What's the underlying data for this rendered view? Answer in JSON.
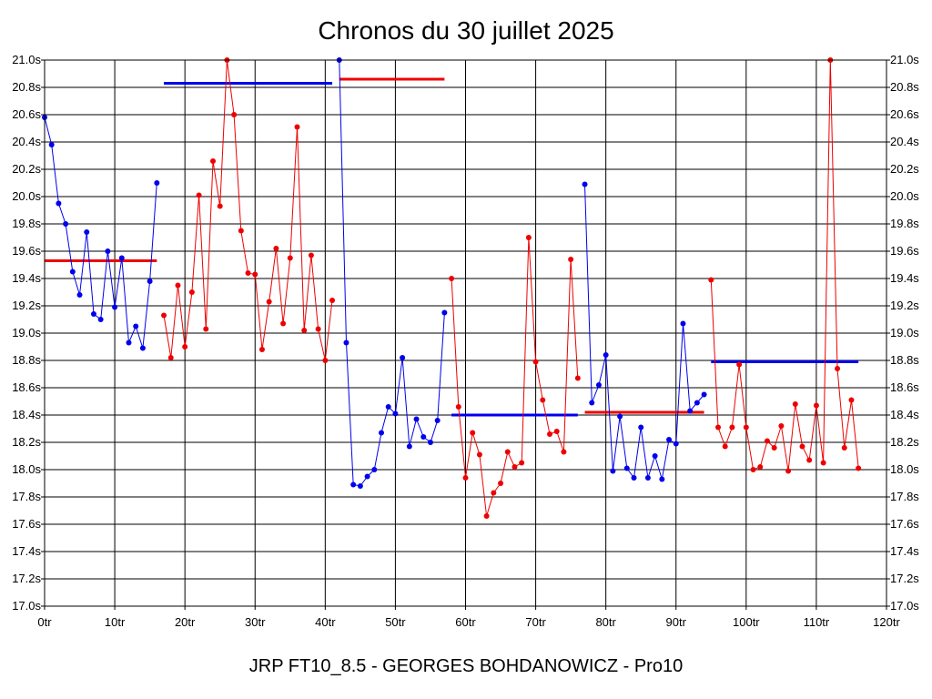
{
  "chart_data": {
    "type": "line",
    "title": "Chronos du 30 juillet 2025",
    "footer": "JRP FT10_8.5 - GEORGES BOHDANOWICZ - Pro10",
    "xlabel": "",
    "ylabel": "",
    "xlim": [
      0,
      120
    ],
    "ylim": [
      17.0,
      21.0
    ],
    "x_ticks": [
      0,
      10,
      20,
      30,
      40,
      50,
      60,
      70,
      80,
      90,
      100,
      110,
      120
    ],
    "x_tick_labels": [
      "0tr",
      "10tr",
      "20tr",
      "30tr",
      "40tr",
      "50tr",
      "60tr",
      "70tr",
      "80tr",
      "90tr",
      "100tr",
      "110tr",
      "120tr"
    ],
    "y_ticks": [
      17.0,
      17.2,
      17.4,
      17.6,
      17.8,
      18.0,
      18.2,
      18.4,
      18.6,
      18.8,
      19.0,
      19.2,
      19.4,
      19.6,
      19.8,
      20.0,
      20.2,
      20.4,
      20.6,
      20.8,
      21.0
    ],
    "y_tick_labels": [
      "17.0s",
      "17.2s",
      "17.4s",
      "17.6s",
      "17.8s",
      "18.0s",
      "18.2s",
      "18.4s",
      "18.6s",
      "18.8s",
      "19.0s",
      "19.2s",
      "19.4s",
      "19.6s",
      "19.8s",
      "20.0s",
      "20.2s",
      "20.4s",
      "20.6s",
      "20.8s",
      "21.0s"
    ],
    "grid": true,
    "colors": {
      "blue": "#0000ee",
      "red": "#ee0000",
      "grid": "#000000"
    },
    "stints": [
      {
        "color": "blue",
        "x": [
          0,
          1,
          2,
          3,
          4,
          5,
          6,
          7,
          8,
          9,
          10,
          11,
          12,
          13,
          14,
          15,
          16
        ],
        "values": [
          20.58,
          20.38,
          19.95,
          19.8,
          19.45,
          19.28,
          19.74,
          19.14,
          19.1,
          19.6,
          19.19,
          19.55,
          18.93,
          19.05,
          18.89,
          19.38,
          20.1
        ],
        "mean": 19.53
      },
      {
        "color": "red",
        "x": [
          17,
          18,
          19,
          20,
          21,
          22,
          23,
          24,
          25,
          26,
          27,
          28,
          29,
          30,
          31,
          32,
          33,
          34,
          35,
          36,
          37,
          38,
          39,
          40,
          41
        ],
        "values": [
          19.13,
          18.82,
          19.35,
          18.9,
          19.3,
          20.01,
          19.03,
          20.26,
          19.93,
          21.0,
          20.6,
          19.75,
          19.44,
          19.43,
          18.88,
          19.23,
          19.62,
          19.07,
          19.55,
          20.51,
          19.02,
          19.57,
          19.03,
          18.8,
          19.24
        ],
        "mean": 20.83
      },
      {
        "color": "blue",
        "x": [
          42,
          43,
          44,
          45,
          46,
          47,
          48,
          49,
          50,
          51,
          52,
          53,
          54,
          55,
          56,
          57
        ],
        "values": [
          21.0,
          18.93,
          17.89,
          17.88,
          17.95,
          18.0,
          18.27,
          18.46,
          18.41,
          18.82,
          18.17,
          18.37,
          18.24,
          18.2,
          18.36,
          19.15
        ],
        "mean": 20.86
      },
      {
        "color": "red",
        "x": [
          58,
          59,
          60,
          61,
          62,
          63,
          64,
          65,
          66,
          67,
          68,
          69,
          70,
          71,
          72,
          73,
          74,
          75,
          76
        ],
        "values": [
          19.4,
          18.46,
          17.94,
          18.27,
          18.11,
          17.66,
          17.83,
          17.9,
          18.13,
          18.02,
          18.05,
          19.7,
          18.79,
          18.51,
          18.26,
          18.28,
          18.13,
          19.54,
          18.67
        ],
        "mean": 18.4
      },
      {
        "color": "blue",
        "x": [
          77,
          78,
          79,
          80,
          81,
          82,
          83,
          84,
          85,
          86,
          87,
          88,
          89,
          90,
          91,
          92,
          93,
          94
        ],
        "values": [
          20.09,
          18.49,
          18.62,
          18.84,
          17.99,
          18.39,
          18.01,
          17.94,
          18.31,
          17.94,
          18.1,
          17.93,
          18.22,
          18.19,
          19.07,
          18.43,
          18.49,
          18.55
        ],
        "mean": 18.42
      },
      {
        "color": "red",
        "x": [
          95,
          96,
          97,
          98,
          99,
          100,
          101,
          102,
          103,
          104,
          105,
          106,
          107,
          108,
          109,
          110,
          111,
          112,
          113,
          114,
          115,
          116
        ],
        "values": [
          19.39,
          18.31,
          18.17,
          18.31,
          18.77,
          18.31,
          18.0,
          18.02,
          18.21,
          18.16,
          18.32,
          17.99,
          18.48,
          18.17,
          18.07,
          18.47,
          18.05,
          21.0,
          18.74,
          18.16,
          18.51,
          18.01
        ],
        "mean": 18.79
      }
    ],
    "mean_lines": [
      {
        "color": "red",
        "x_start": 0,
        "x_end": 16,
        "value": 19.53
      },
      {
        "color": "blue",
        "x_start": 17,
        "x_end": 41,
        "value": 20.83
      },
      {
        "color": "red",
        "x_start": 42,
        "x_end": 57,
        "value": 20.86
      },
      {
        "color": "blue",
        "x_start": 58,
        "x_end": 76,
        "value": 18.4
      },
      {
        "color": "red",
        "x_start": 77,
        "x_end": 94,
        "value": 18.42
      },
      {
        "color": "blue",
        "x_start": 95,
        "x_end": 116,
        "value": 18.79
      }
    ]
  }
}
